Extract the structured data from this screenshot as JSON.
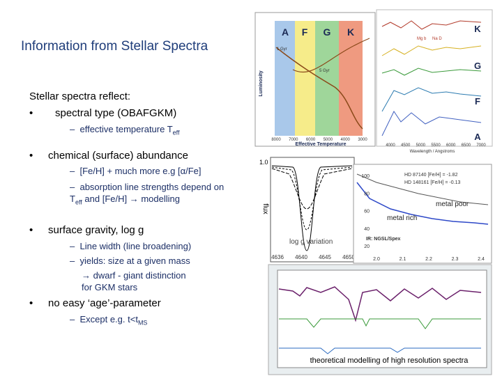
{
  "slide": {
    "title": "Information from Stellar Spectra",
    "intro": "Stellar spectra reflect:",
    "bullets": [
      {
        "text": "spectral type  (OBAFGKM)",
        "subs": [
          [
            {
              "text": "effective temperature T"
            },
            {
              "text": "eff",
              "sub": true
            }
          ]
        ]
      },
      {
        "text": "chemical (surface) abundance",
        "subs": [
          [
            {
              "text": "[Fe/H] + much more e.g [α/Fe]"
            }
          ],
          [
            {
              "text": "absorption line strengths depend on T"
            },
            {
              "text": "eff",
              "sub": true
            },
            {
              "text": " and [Fe/H] → modelling"
            }
          ]
        ]
      },
      {
        "text": "surface gravity, log g",
        "subs": [
          [
            {
              "text": "Line width (line broadening)"
            }
          ],
          [
            {
              "text": "yields: size at a given mass"
            }
          ],
          [
            {
              "text": "→ dwarf - giant distinction for GKM stars"
            }
          ]
        ]
      },
      {
        "text": "no easy ‘age’-parameter",
        "subs": [
          [
            {
              "text": "Except e.g.  t<t"
            },
            {
              "text": "MS",
              "sub": true
            }
          ]
        ]
      }
    ]
  },
  "figures": {
    "hr": {
      "bands": [
        "A",
        "F",
        "G",
        "K"
      ],
      "ylabel": "Luminosity",
      "xlabel": "Effective Temperature",
      "xticks": [
        "8000",
        "7000",
        "6000",
        "5000",
        "4000",
        "3000"
      ],
      "isochrones": [
        "1 Gyr",
        "5 Gyr"
      ]
    },
    "spectra": {
      "types": [
        "K",
        "G",
        "F",
        "A"
      ],
      "lines": [
        "Mg b",
        "Na D"
      ],
      "xlabel": "Wavelength / Angstroms",
      "xticks": [
        "4000",
        "4500",
        "5000",
        "5500",
        "6000",
        "6500",
        "7000"
      ]
    },
    "profile": {
      "ylabel": "flux",
      "ytick": "1.0",
      "note": "log g variation",
      "xticks": [
        "4636",
        "4640",
        "4645",
        "4650"
      ]
    },
    "metal": {
      "stars": [
        "HD 87140 [Fe/H] = -1.82",
        "HD 148161 [Fe/H] = -0.13"
      ],
      "poor": "metal poor",
      "rich": "metal rich",
      "source": "IR: NGSL/Spex",
      "yticks": [
        "100",
        "80",
        "60",
        "40",
        "20"
      ],
      "xticks": [
        "2.0",
        "2.1",
        "2.2",
        "2.3",
        "2.4"
      ]
    },
    "highres": {
      "caption": "theoretical modelling of high resolution spectra"
    }
  }
}
